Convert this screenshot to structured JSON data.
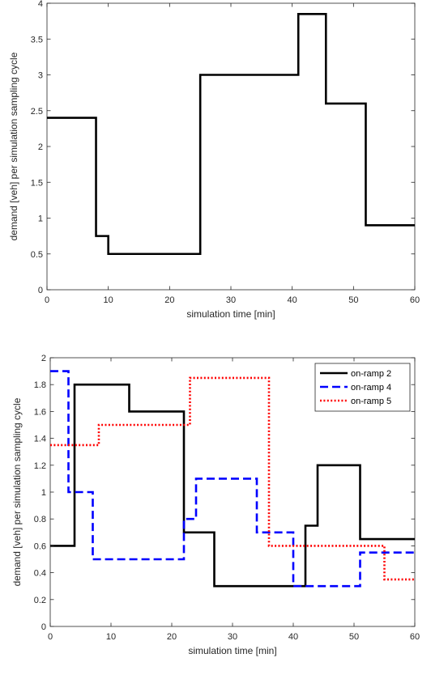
{
  "chart_data": [
    {
      "type": "line",
      "step": true,
      "xlabel": "simulation time [min]",
      "ylabel": "demand [veh] per simulation sampling cycle",
      "xlim": [
        0,
        60
      ],
      "ylim": [
        0,
        4
      ],
      "xticks": [
        0,
        10,
        20,
        30,
        40,
        50,
        60
      ],
      "yticks": [
        0,
        0.5,
        1,
        1.5,
        2,
        2.5,
        3,
        3.5,
        4
      ],
      "grid": false,
      "legend": "none",
      "series": [
        {
          "color": "#000000",
          "dash": "solid",
          "points": [
            [
              0,
              2.4
            ],
            [
              8,
              2.4
            ],
            [
              8,
              0.75
            ],
            [
              10,
              0.75
            ],
            [
              10,
              0.5
            ],
            [
              25,
              0.5
            ],
            [
              25,
              3
            ],
            [
              41,
              3
            ],
            [
              41,
              3.85
            ],
            [
              45.5,
              3.85
            ],
            [
              45.5,
              2.6
            ],
            [
              52,
              2.6
            ],
            [
              52,
              0.9
            ],
            [
              60,
              0.9
            ]
          ]
        }
      ]
    },
    {
      "type": "line",
      "step": true,
      "xlabel": "simulation time [min]",
      "ylabel": "demand [veh] per simulation sampling cycle",
      "xlim": [
        0,
        60
      ],
      "ylim": [
        0,
        2
      ],
      "xticks": [
        0,
        10,
        20,
        30,
        40,
        50,
        60
      ],
      "yticks": [
        0,
        0.2,
        0.4,
        0.6,
        0.8,
        1,
        1.2,
        1.4,
        1.6,
        1.8,
        2
      ],
      "grid": false,
      "legend": "top-right",
      "series": [
        {
          "name": "on-ramp 2",
          "color": "#000000",
          "dash": "solid",
          "points": [
            [
              0,
              0.6
            ],
            [
              4,
              0.6
            ],
            [
              4,
              1.8
            ],
            [
              13,
              1.8
            ],
            [
              13,
              1.6
            ],
            [
              22,
              1.6
            ],
            [
              22,
              0.7
            ],
            [
              27,
              0.7
            ],
            [
              27,
              0.3
            ],
            [
              42,
              0.3
            ],
            [
              42,
              0.75
            ],
            [
              44,
              0.75
            ],
            [
              44,
              1.2
            ],
            [
              51,
              1.2
            ],
            [
              51,
              0.65
            ],
            [
              60,
              0.65
            ]
          ]
        },
        {
          "name": "on-ramp 4",
          "color": "#0000ff",
          "dash": "dashed",
          "points": [
            [
              0,
              1.9
            ],
            [
              3,
              1.9
            ],
            [
              3,
              1.0
            ],
            [
              7,
              1.0
            ],
            [
              7,
              0.5
            ],
            [
              22,
              0.5
            ],
            [
              22,
              0.8
            ],
            [
              24,
              0.8
            ],
            [
              24,
              1.1
            ],
            [
              34,
              1.1
            ],
            [
              34,
              0.7
            ],
            [
              40,
              0.7
            ],
            [
              40,
              0.3
            ],
            [
              51,
              0.3
            ],
            [
              51,
              0.55
            ],
            [
              60,
              0.55
            ]
          ]
        },
        {
          "name": "on-ramp 5",
          "color": "#ff0000",
          "dash": "dotted",
          "points": [
            [
              0,
              1.35
            ],
            [
              8,
              1.35
            ],
            [
              8,
              1.5
            ],
            [
              23,
              1.5
            ],
            [
              23,
              1.85
            ],
            [
              36,
              1.85
            ],
            [
              36,
              0.6
            ],
            [
              55,
              0.6
            ],
            [
              55,
              0.35
            ],
            [
              60,
              0.35
            ]
          ]
        }
      ]
    }
  ]
}
